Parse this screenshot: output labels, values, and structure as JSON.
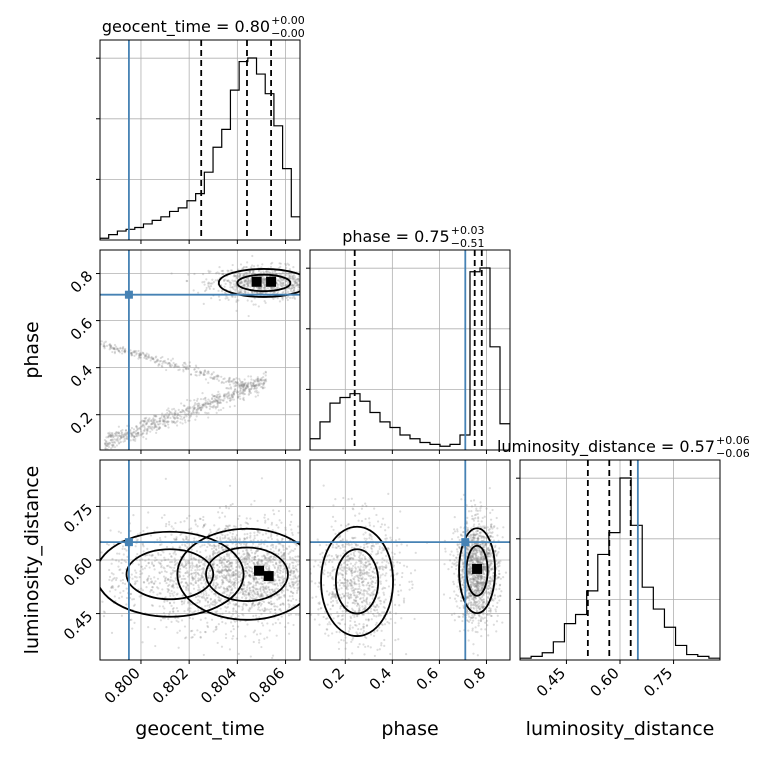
{
  "chart_data": {
    "type": "corner",
    "parameters": [
      "geocent_time",
      "phase",
      "luminosity_distance"
    ],
    "axis_labels": [
      "geocent_time",
      "phase",
      "luminosity_distance"
    ],
    "ranges": [
      [
        0.7983,
        0.8066
      ],
      [
        0.05,
        0.9
      ],
      [
        0.32,
        0.88
      ]
    ],
    "truths": [
      0.7995,
      0.71,
      0.65
    ],
    "truth_color": "#4682b4",
    "grid": true,
    "titles": [
      {
        "prefix": "geocent_time = ",
        "value": "0.80",
        "plus": "+0.00",
        "minus": "−0.00"
      },
      {
        "prefix": "phase = ",
        "value": "0.75",
        "plus": "+0.03",
        "minus": "−0.51"
      },
      {
        "prefix": "luminosity_distance = ",
        "value": "0.57",
        "plus": "+0.06",
        "minus": "−0.06"
      }
    ],
    "ticks": {
      "geocent_time": {
        "values": [
          0.8,
          0.802,
          0.804,
          0.806
        ],
        "labels": [
          "0.800",
          "0.802",
          "0.804",
          "0.806"
        ]
      },
      "phase": {
        "values": [
          0.2,
          0.4,
          0.6,
          0.8
        ],
        "labels": [
          "0.2",
          "0.4",
          "0.6",
          "0.8"
        ]
      },
      "luminosity_distance": {
        "values": [
          0.45,
          0.6,
          0.75
        ],
        "labels": [
          "0.45",
          "0.60",
          "0.75"
        ]
      }
    },
    "quantiles": [
      [
        0.8025,
        0.8044,
        0.8054
      ],
      [
        0.24,
        0.75,
        0.78
      ],
      [
        0.51,
        0.57,
        0.63
      ]
    ],
    "histograms": [
      {
        "edges_range": [
          0.7983,
          0.8066
        ],
        "counts": [
          1,
          3,
          5,
          6,
          7,
          9,
          11,
          13,
          16,
          18,
          22,
          26,
          38,
          52,
          62,
          84,
          100,
          102,
          93,
          82,
          64,
          40,
          13
        ]
      },
      {
        "edges_range": [
          0.05,
          0.9
        ],
        "counts": [
          6,
          15,
          25,
          28,
          30,
          26,
          20,
          15,
          12,
          8,
          6,
          4,
          3,
          2,
          3,
          8,
          95,
          97,
          55,
          14
        ]
      },
      {
        "edges_range": [
          0.32,
          0.88
        ],
        "counts": [
          1,
          2,
          4,
          10,
          20,
          25,
          38,
          58,
          70,
          100,
          74,
          40,
          28,
          18,
          8,
          3,
          2,
          1
        ]
      }
    ],
    "scatter_2d": [
      {
        "x_param": "geocent_time",
        "y_param": "phase",
        "clusters": [
          {
            "kind": "blob",
            "center": [
              0.8051,
              0.76
            ],
            "spread": [
              0.0011,
              0.035
            ],
            "count": 900
          },
          {
            "kind": "band",
            "from": [
              0.7985,
              0.08
            ],
            "to": [
              0.8052,
              0.34
            ],
            "spread": 0.02,
            "count": 700
          },
          {
            "kind": "band",
            "from": [
              0.7983,
              0.5
            ],
            "to": [
              0.8048,
              0.31
            ],
            "spread": 0.01,
            "count": 300
          }
        ],
        "dense_cells": [
          [
            0.8048,
            0.765
          ],
          [
            0.8054,
            0.765
          ]
        ]
      },
      {
        "x_param": "geocent_time",
        "y_param": "luminosity_distance",
        "clusters": [
          {
            "kind": "blob",
            "center": [
              0.8044,
              0.56
            ],
            "spread": [
              0.0017,
              0.075
            ],
            "count": 1800
          },
          {
            "kind": "blob",
            "center": [
              0.8012,
              0.56
            ],
            "spread": [
              0.0018,
              0.07
            ],
            "count": 500
          }
        ],
        "dense_cells": [
          [
            0.8049,
            0.57
          ],
          [
            0.8053,
            0.555
          ]
        ]
      },
      {
        "x_param": "phase",
        "y_param": "luminosity_distance",
        "clusters": [
          {
            "kind": "blob",
            "center": [
              0.76,
              0.57
            ],
            "spread": [
              0.045,
              0.07
            ],
            "count": 1400
          },
          {
            "kind": "blob",
            "center": [
              0.25,
              0.54
            ],
            "spread": [
              0.09,
              0.09
            ],
            "count": 900
          }
        ],
        "dense_cells": [
          [
            0.76,
            0.575
          ]
        ]
      }
    ]
  }
}
